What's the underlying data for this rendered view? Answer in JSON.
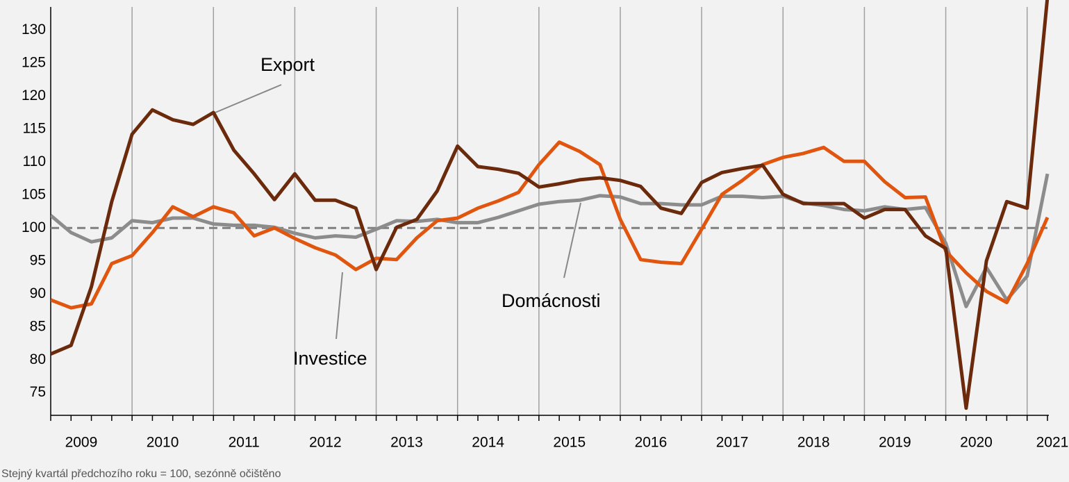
{
  "chart_data": {
    "type": "line",
    "categories": [
      null,
      "2009",
      null,
      null,
      null,
      "2010",
      null,
      null,
      null,
      "2011",
      null,
      null,
      null,
      "2012",
      null,
      null,
      null,
      "2013",
      null,
      null,
      null,
      "2014",
      null,
      null,
      null,
      "2015",
      null,
      null,
      null,
      "2016",
      null,
      null,
      null,
      "2017",
      null,
      null,
      null,
      "2018",
      null,
      null,
      null,
      "2019",
      null,
      null,
      null,
      "2020",
      null,
      null,
      null,
      "2021"
    ],
    "series": [
      {
        "name": "Export",
        "color": "#6b2a0c",
        "values": [
          80.9,
          82.2,
          91.1,
          104,
          114.2,
          117.9,
          116.4,
          115.7,
          117.5,
          111.8,
          108.2,
          104.3,
          108.2,
          104.2,
          104.2,
          103,
          93.7,
          100.1,
          101.3,
          105.6,
          112.4,
          109.3,
          108.9,
          108.3,
          106.2,
          106.7,
          107.3,
          107.6,
          107.2,
          106.3,
          103,
          102.2,
          106.9,
          108.4,
          109,
          109.5,
          105.1,
          103.7,
          103.7,
          103.7,
          101.5,
          102.8,
          102.8,
          98.8,
          96.9,
          72.7,
          95,
          104,
          103,
          135
        ]
      },
      {
        "name": "Investice",
        "color": "#e0560f",
        "values": [
          89.1,
          87.9,
          88.5,
          94.6,
          95.8,
          99.3,
          103.2,
          101.7,
          103.2,
          102.3,
          98.8,
          100,
          98.4,
          97,
          95.9,
          93.7,
          95.4,
          95.2,
          98.5,
          101.1,
          101.5,
          103,
          104.1,
          105.4,
          109.6,
          113,
          111.6,
          109.6,
          101.3,
          95.2,
          94.8,
          94.6,
          99.8,
          105.1,
          107.2,
          109.6,
          110.7,
          111.3,
          112.2,
          110.1,
          110.1,
          107,
          104.6,
          104.7,
          96.5,
          93.2,
          90.4,
          88.7,
          94.6,
          101.6
        ]
      },
      {
        "name": "Domácnosti",
        "color": "#8c8c8c",
        "values": [
          101.9,
          99.3,
          97.9,
          98.5,
          101.1,
          100.8,
          101.5,
          101.5,
          100.6,
          100.4,
          100.4,
          100.1,
          99.2,
          98.5,
          98.8,
          98.6,
          99.8,
          101.1,
          101,
          101.3,
          100.8,
          100.8,
          101.6,
          102.6,
          103.6,
          104,
          104.2,
          104.9,
          104.7,
          103.7,
          103.7,
          103.5,
          103.5,
          104.8,
          104.8,
          104.6,
          104.8,
          103.8,
          103.4,
          102.8,
          102.6,
          103.2,
          102.8,
          103.1,
          97.7,
          88.1,
          94,
          89.1,
          92.7,
          108.2
        ]
      }
    ],
    "ylim": [
      71.6,
      133.5
    ],
    "yticks": [
      75,
      80,
      85,
      90,
      95,
      100,
      105,
      110,
      115,
      120,
      125,
      130
    ],
    "reference_line": 100,
    "note": "Stejný kvartál předchozího roku = 100, sezónně očištěno"
  }
}
